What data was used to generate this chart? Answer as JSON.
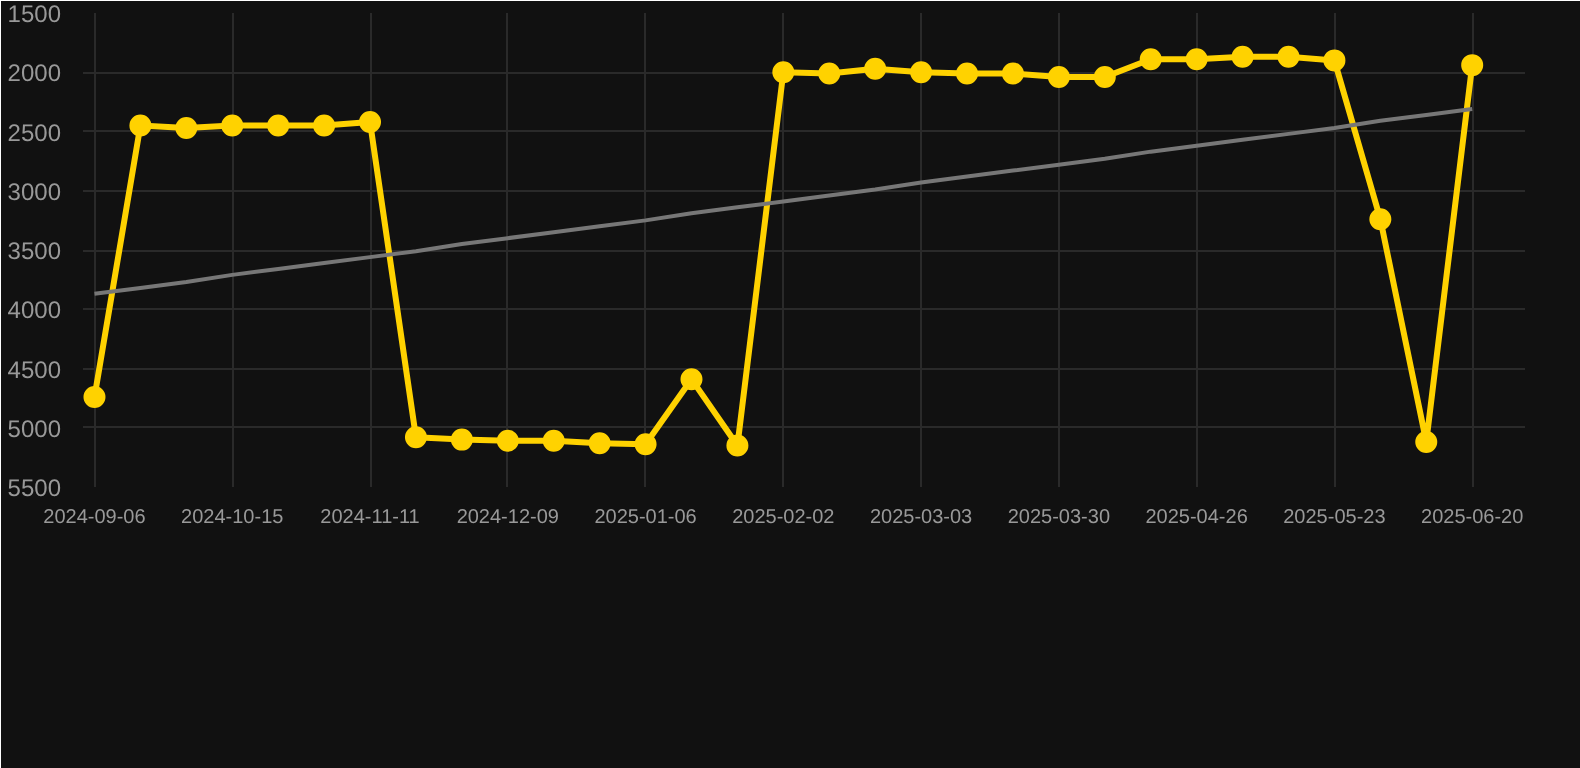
{
  "chart_data": {
    "type": "line",
    "categories": [
      "2024-09-06",
      null,
      null,
      "2024-10-15",
      null,
      null,
      "2024-11-11",
      null,
      null,
      "2024-12-09",
      null,
      null,
      "2025-01-06",
      null,
      null,
      "2025-02-02",
      null,
      null,
      "2025-03-03",
      null,
      null,
      "2025-03-30",
      null,
      null,
      "2025-04-26",
      null,
      null,
      "2025-05-23",
      null,
      null,
      "2025-06-20"
    ],
    "series": [
      {
        "color": "#ffd200",
        "marker": "circle",
        "values": [
          4740,
          2450,
          2470,
          2450,
          2450,
          2450,
          2420,
          5080,
          5100,
          5110,
          5110,
          5130,
          5140,
          4590,
          5150,
          2000,
          2010,
          1970,
          2000,
          2010,
          2010,
          2040,
          2040,
          1890,
          1890,
          1870,
          1870,
          1900,
          3240,
          5120,
          1940
        ]
      },
      {
        "type": "line",
        "color": "#777777",
        "marker": "none",
        "values": [
          3870,
          3820,
          3770,
          3710,
          3660,
          3610,
          3560,
          3510,
          3450,
          3400,
          3350,
          3300,
          3250,
          3190,
          3140,
          3090,
          3040,
          2990,
          2930,
          2880,
          2830,
          2780,
          2730,
          2670,
          2620,
          2570,
          2520,
          2470,
          2410,
          2360,
          2310
        ]
      }
    ],
    "ylim": [
      5500,
      1500
    ],
    "yticks": [
      1500,
      2000,
      2500,
      3000,
      3500,
      4000,
      4500,
      5000,
      5500
    ],
    "grid": true
  }
}
